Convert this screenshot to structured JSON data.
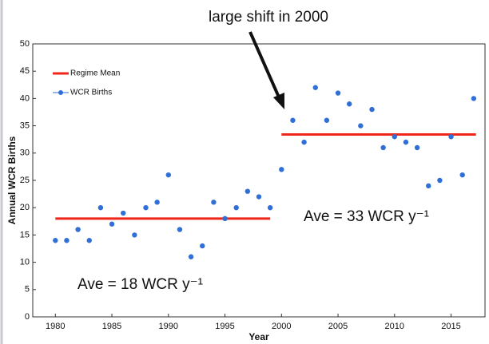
{
  "chart_data": {
    "type": "scatter",
    "xlabel": "Year",
    "ylabel": "Annual WCR Births",
    "x": [
      1980,
      1981,
      1982,
      1983,
      1984,
      1985,
      1986,
      1987,
      1988,
      1989,
      1990,
      1991,
      1992,
      1993,
      1994,
      1995,
      1996,
      1997,
      1998,
      1999,
      2000,
      2001,
      2002,
      2003,
      2004,
      2005,
      2006,
      2007,
      2008,
      2009,
      2010,
      2011,
      2012,
      2013,
      2014,
      2015,
      2016,
      2017
    ],
    "series": [
      {
        "name": "WCR Births",
        "color": "#2f6fd6",
        "values": [
          14,
          14,
          16,
          14,
          20,
          17,
          19,
          15,
          20,
          21,
          26,
          16,
          11,
          13,
          21,
          18,
          20,
          23,
          22,
          20,
          27,
          36,
          32,
          42,
          36,
          41,
          39,
          35,
          38,
          31,
          33,
          32,
          31,
          24,
          25,
          33,
          26,
          40
        ]
      }
    ],
    "regime_mean": {
      "name": "Regime Mean",
      "color": "#f0261b",
      "segments": [
        {
          "x": [
            1980,
            1999
          ],
          "value": 18
        },
        {
          "x": [
            2000,
            2017.2
          ],
          "value": 33.4
        }
      ]
    },
    "annotations": [
      {
        "text": "large shift in 2000"
      },
      {
        "text": "Ave = 33 WCR y⁻¹"
      },
      {
        "text": "Ave = 18 WCR y⁻¹"
      }
    ],
    "xlim": [
      1978,
      2018
    ],
    "ylim": [
      0,
      50
    ],
    "xticks": [
      1980,
      1985,
      1990,
      1995,
      2000,
      2005,
      2010,
      2015
    ],
    "yticks": [
      0,
      5,
      10,
      15,
      20,
      25,
      30,
      35,
      40,
      45,
      50
    ],
    "legend": "upper left"
  }
}
